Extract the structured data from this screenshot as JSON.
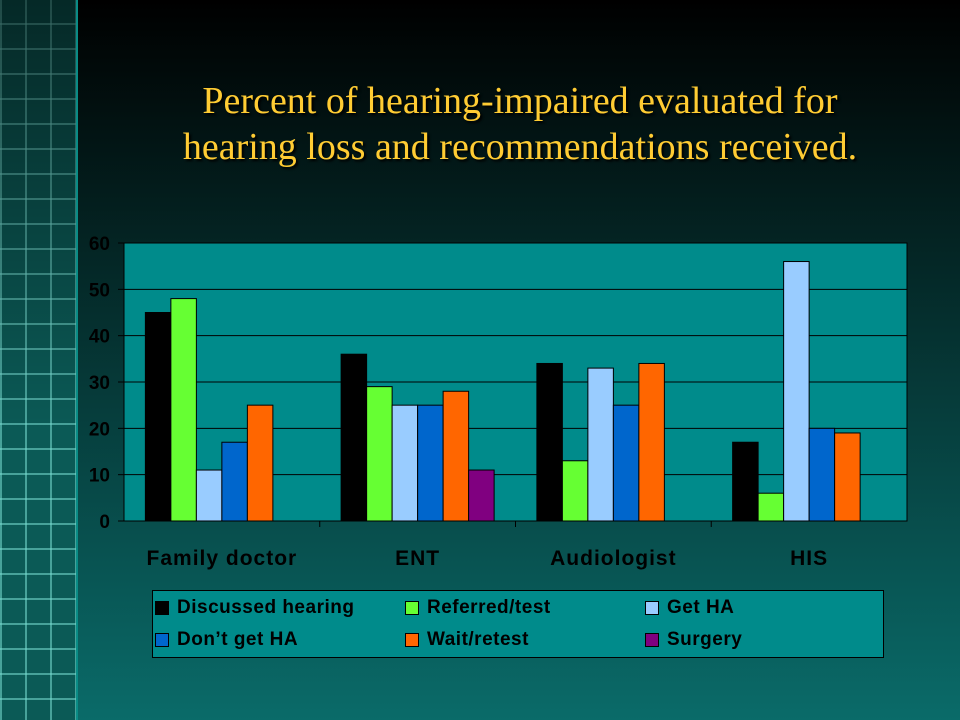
{
  "slide": {
    "title_line1": "Percent of hearing-impaired evaluated for",
    "title_line2": "hearing loss and recommendations received."
  },
  "chart_data": {
    "type": "bar",
    "title": "Percent of hearing-impaired evaluated for hearing loss and recommendations received.",
    "categories": [
      "Family doctor",
      "ENT",
      "Audiologist",
      "HIS"
    ],
    "ylim": [
      0,
      60
    ],
    "yticks": [
      0,
      10,
      20,
      30,
      40,
      50,
      60
    ],
    "grid": true,
    "legend_position": "bottom",
    "series": [
      {
        "name": "Discussed hearing",
        "color": "#000000",
        "values": [
          45,
          36,
          34,
          17
        ]
      },
      {
        "name": "Referred/test",
        "color": "#66ff33",
        "values": [
          48,
          29,
          13,
          6
        ]
      },
      {
        "name": "Get HA",
        "color": "#99ccff",
        "values": [
          11,
          25,
          33,
          56
        ]
      },
      {
        "name": "Don’t get HA",
        "color": "#0066cc",
        "values": [
          17,
          25,
          25,
          20
        ]
      },
      {
        "name": "Wait/retest",
        "color": "#ff6600",
        "values": [
          25,
          28,
          34,
          19
        ]
      },
      {
        "name": "Surgery",
        "color": "#800080",
        "values": [
          0,
          11,
          0,
          0
        ]
      }
    ]
  }
}
